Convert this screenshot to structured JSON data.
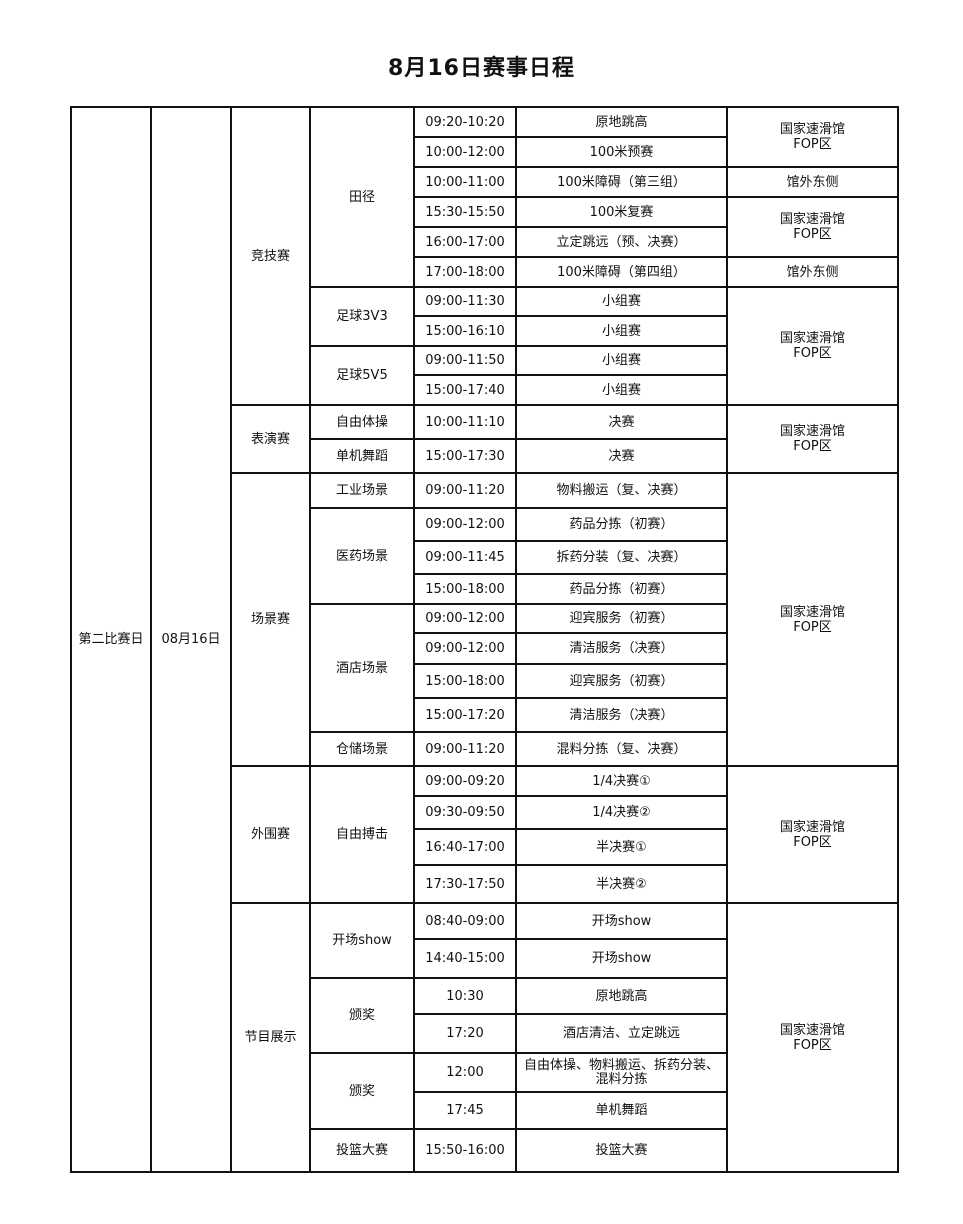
{
  "title": "8月16日赛事日程",
  "day": "第二比赛日",
  "date": "08月16日",
  "categories": [
    {
      "name": "竞技赛",
      "sports": [
        {
          "name": "田径",
          "sessions": [
            {
              "time": "09:20-10:20",
              "event": "原地跳高",
              "venue": "国家速滑馆\nFOP区"
            },
            {
              "time": "10:00-12:00",
              "event": "100米预赛",
              "venue": "国家速滑馆\nFOP区"
            },
            {
              "time": "10:00-11:00",
              "event": "100米障碍（第三组）",
              "venue": "馆外东侧"
            },
            {
              "time": "15:30-15:50",
              "event": "100米复赛",
              "venue": "国家速滑馆\nFOP区"
            },
            {
              "time": "16:00-17:00",
              "event": "立定跳远（预、决赛）",
              "venue": "国家速滑馆\nFOP区"
            },
            {
              "time": "17:00-18:00",
              "event": "100米障碍（第四组）",
              "venue": "馆外东侧"
            }
          ]
        },
        {
          "name": "足球3V3",
          "sessions": [
            {
              "time": "09:00-11:30",
              "event": "小组赛",
              "venue": "国家速滑馆\nFOP区"
            },
            {
              "time": "15:00-16:10",
              "event": "小组赛",
              "venue": "国家速滑馆\nFOP区"
            }
          ]
        },
        {
          "name": "足球5V5",
          "sessions": [
            {
              "time": "09:00-11:50",
              "event": "小组赛",
              "venue": "国家速滑馆\nFOP区"
            },
            {
              "time": "15:00-17:40",
              "event": "小组赛",
              "venue": "国家速滑馆\nFOP区"
            }
          ]
        }
      ]
    },
    {
      "name": "表演赛",
      "sports": [
        {
          "name": "自由体操",
          "sessions": [
            {
              "time": "10:00-11:10",
              "event": "决赛",
              "venue": "国家速滑馆\nFOP区"
            }
          ]
        },
        {
          "name": "单机舞蹈",
          "sessions": [
            {
              "time": "15:00-17:30",
              "event": "决赛",
              "venue": "国家速滑馆\nFOP区"
            }
          ]
        }
      ]
    },
    {
      "name": "场景赛",
      "sports": [
        {
          "name": "工业场景",
          "sessions": [
            {
              "time": "09:00-11:20",
              "event": "物料搬运（复、决赛）",
              "venue": "国家速滑馆\nFOP区"
            }
          ]
        },
        {
          "name": "医药场景",
          "sessions": [
            {
              "time": "09:00-12:00",
              "event": "药品分拣（初赛）",
              "venue": "国家速滑馆\nFOP区"
            },
            {
              "time": "09:00-11:45",
              "event": "拆药分装（复、决赛）",
              "venue": "国家速滑馆\nFOP区"
            },
            {
              "time": "15:00-18:00",
              "event": "药品分拣（初赛）",
              "venue": "国家速滑馆\nFOP区"
            }
          ]
        },
        {
          "name": "酒店场景",
          "sessions": [
            {
              "time": "09:00-12:00",
              "event": "迎宾服务（初赛）",
              "venue": "国家速滑馆\nFOP区"
            },
            {
              "time": "09:00-12:00",
              "event": "清洁服务（决赛）",
              "venue": "国家速滑馆\nFOP区"
            },
            {
              "time": "15:00-18:00",
              "event": "迎宾服务（初赛）",
              "venue": "国家速滑馆\nFOP区"
            },
            {
              "time": "15:00-17:20",
              "event": "清洁服务（决赛）",
              "venue": "国家速滑馆\nFOP区"
            }
          ]
        },
        {
          "name": "仓储场景",
          "sessions": [
            {
              "time": "09:00-11:20",
              "event": "混料分拣（复、决赛）",
              "venue": "国家速滑馆\nFOP区"
            }
          ]
        }
      ]
    },
    {
      "name": "外围赛",
      "sports": [
        {
          "name": "自由搏击",
          "sessions": [
            {
              "time": "09:00-09:20",
              "event": "1/4决赛①",
              "venue": "国家速滑馆\nFOP区"
            },
            {
              "time": "09:30-09:50",
              "event": "1/4决赛②",
              "venue": "国家速滑馆\nFOP区"
            },
            {
              "time": "16:40-17:00",
              "event": "半决赛①",
              "venue": "国家速滑馆\nFOP区"
            },
            {
              "time": "17:30-17:50",
              "event": "半决赛②",
              "venue": "国家速滑馆\nFOP区"
            }
          ]
        }
      ]
    },
    {
      "name": "节目展示",
      "sports": [
        {
          "name": "开场show",
          "sessions": [
            {
              "time": "08:40-09:00",
              "event": "开场show",
              "venue": "国家速滑馆\nFOP区"
            },
            {
              "time": "14:40-15:00",
              "event": "开场show",
              "venue": "国家速滑馆\nFOP区"
            }
          ]
        },
        {
          "name": "颁奖",
          "sessions": [
            {
              "time": "10:30",
              "event": "原地跳高",
              "venue": "国家速滑馆\nFOP区"
            },
            {
              "time": "17:20",
              "event": "酒店清洁、立定跳远",
              "venue": "国家速滑馆\nFOP区"
            }
          ]
        },
        {
          "name": "颁奖",
          "sessions": [
            {
              "time": "12:00",
              "event": "自由体操、物料搬运、拆药分装、\n混料分拣",
              "venue": "国家速滑馆\nFOP区"
            },
            {
              "time": "17:45",
              "event": "单机舞蹈",
              "venue": "国家速滑馆\nFOP区"
            }
          ]
        },
        {
          "name": "投篮大赛",
          "sessions": [
            {
              "time": "15:50-16:00",
              "event": "投篮大赛",
              "venue": "国家速滑馆\nFOP区"
            }
          ]
        }
      ]
    }
  ]
}
